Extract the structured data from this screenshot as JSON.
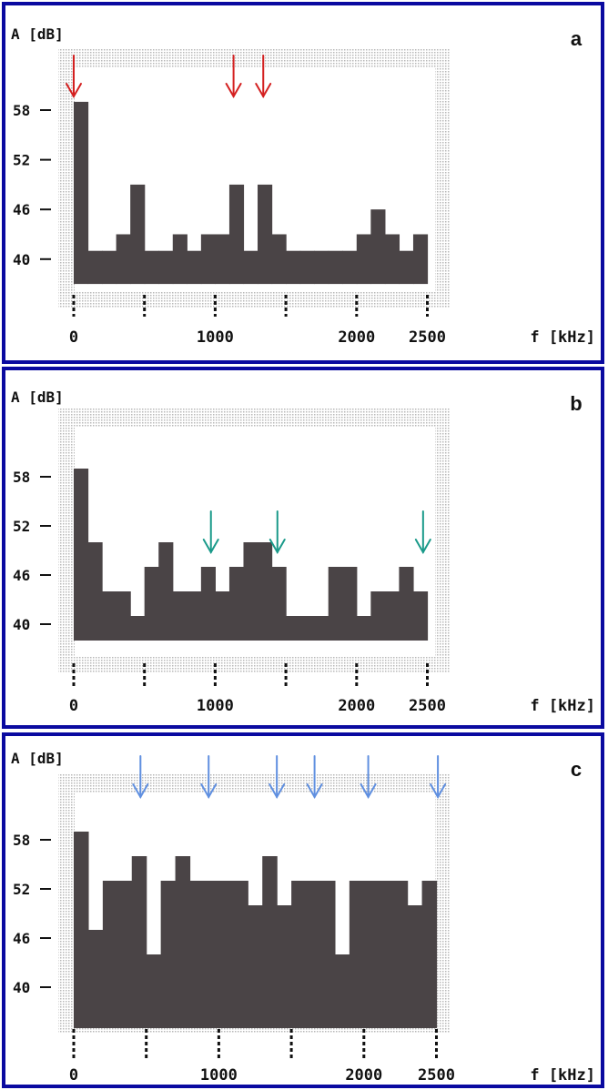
{
  "colors": {
    "border": "#0a0aa0",
    "bars": "#4a4446",
    "frame_dots": "#b8b8b8",
    "arrow_a": "#d42020",
    "arrow_b": "#1a9a8a",
    "arrow_c": "#5f8fe0"
  },
  "chart_data": [
    {
      "type": "bar",
      "panel_label": "a",
      "ylabel": "A [dB]",
      "xlabel": "f [kHz]",
      "yticks": [
        "40",
        "46",
        "52",
        "58"
      ],
      "xticks": [
        "0",
        "",
        "1000",
        "",
        "2000",
        "2500"
      ],
      "xtick_values": [
        0,
        500,
        1000,
        1500,
        2000,
        2500
      ],
      "xlim": [
        0,
        2500
      ],
      "baseline": 37,
      "bar_width": 100,
      "values": [
        59,
        41,
        41,
        43,
        49,
        41,
        41,
        43,
        41,
        43,
        43,
        49,
        41,
        49,
        43,
        41,
        41,
        41,
        41,
        41,
        43,
        46,
        43,
        41,
        43
      ],
      "arrows_x": [
        0,
        1130,
        1340
      ]
    },
    {
      "type": "bar",
      "panel_label": "b",
      "ylabel": "A [dB]",
      "xlabel": "f [kHz]",
      "yticks": [
        "40",
        "46",
        "52",
        "58"
      ],
      "xticks": [
        "0",
        "",
        "1000",
        "",
        "2000",
        "2500"
      ],
      "xtick_values": [
        0,
        500,
        1000,
        1500,
        2000,
        2500
      ],
      "xlim": [
        0,
        2500
      ],
      "baseline": 38,
      "bar_width": 100,
      "values": [
        59,
        50,
        44,
        44,
        41,
        47,
        50,
        44,
        44,
        47,
        44,
        47,
        50,
        50,
        47,
        41,
        41,
        41,
        47,
        47,
        41,
        44,
        44,
        47,
        44
      ],
      "arrows_x": [
        970,
        1440,
        2470
      ]
    },
    {
      "type": "bar",
      "panel_label": "c",
      "ylabel": "A [dB]",
      "xlabel": "f [kHz]",
      "yticks": [
        "40",
        "46",
        "52",
        "58"
      ],
      "xticks": [
        "0",
        "",
        "1000",
        "",
        "2000",
        "2500"
      ],
      "xtick_values": [
        0,
        500,
        1000,
        1500,
        2000,
        2500
      ],
      "xlim": [
        0,
        2500
      ],
      "baseline": 35,
      "bar_width": 100,
      "values": [
        59,
        47,
        53,
        53,
        56,
        44,
        53,
        56,
        53,
        53,
        53,
        53,
        50,
        56,
        50,
        53,
        53,
        53,
        44,
        53,
        53,
        53,
        53,
        50,
        53
      ],
      "arrows_x": [
        460,
        930,
        1400,
        1660,
        2030,
        2510
      ]
    }
  ]
}
